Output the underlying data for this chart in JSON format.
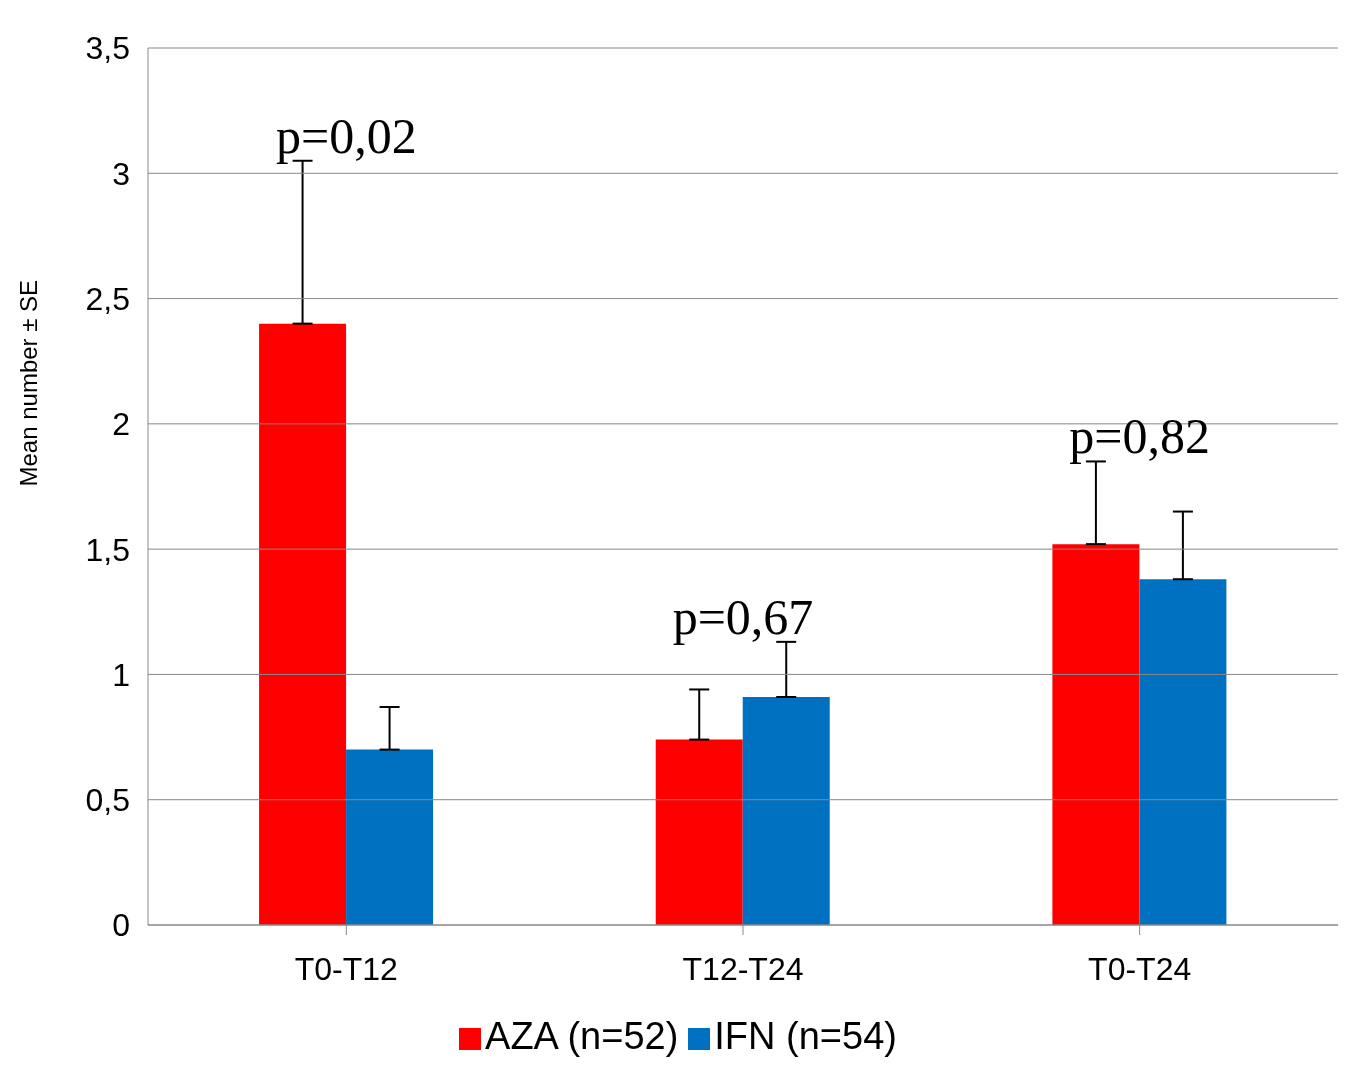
{
  "chart_data": {
    "type": "bar",
    "ylabel": "Mean number ± SE",
    "categories": [
      "T0-T12",
      "T12-T24",
      "T0-T24"
    ],
    "series": [
      {
        "name": "AZA (n=52)",
        "color": "#ff0000",
        "values": [
          2.4,
          0.74,
          1.52
        ],
        "errors": [
          [
            2.4,
            3.05
          ],
          [
            0.74,
            0.94
          ],
          [
            1.52,
            1.85
          ]
        ]
      },
      {
        "name": "IFN (n=54)",
        "color": "#0070c0",
        "values": [
          0.7,
          0.91,
          1.38
        ],
        "errors": [
          [
            0.7,
            0.87
          ],
          [
            0.91,
            1.13
          ],
          [
            1.38,
            1.65
          ]
        ]
      }
    ],
    "ylim": [
      0,
      3.5
    ],
    "yticks": [
      0,
      {
        "value": 0.5,
        "label": "0,5"
      },
      1,
      {
        "value": 1.5,
        "label": "1,5"
      },
      2,
      {
        "value": 2.5,
        "label": "2,5"
      },
      3,
      {
        "value": 3.5,
        "label": "3,5"
      }
    ],
    "grid": "y",
    "legend": "bottom",
    "annotations": [
      "p=0,02",
      "p=0,67",
      "p=0,82"
    ]
  }
}
